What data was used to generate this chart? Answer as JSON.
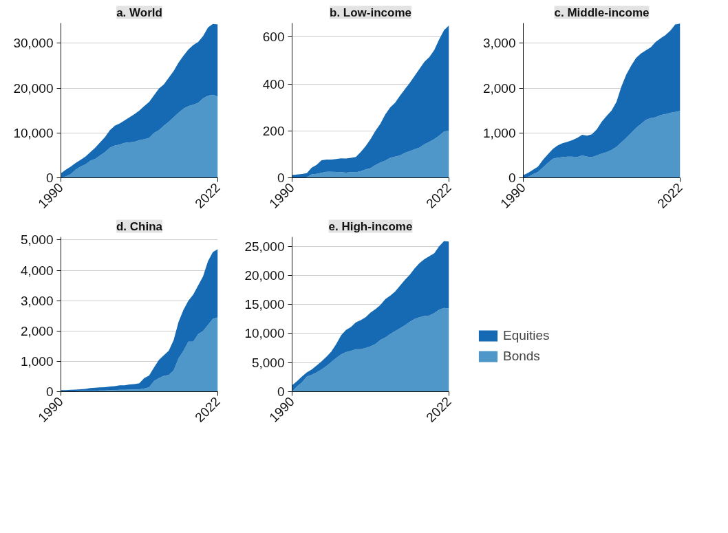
{
  "chart_data": [
    {
      "type": "area",
      "stacked": true,
      "title": "a. World",
      "x": [
        1990,
        1991,
        1992,
        1993,
        1994,
        1995,
        1996,
        1997,
        1998,
        1999,
        2000,
        2001,
        2002,
        2003,
        2004,
        2005,
        2006,
        2007,
        2008,
        2009,
        2010,
        2011,
        2012,
        2013,
        2014,
        2015,
        2016,
        2017,
        2018,
        2019,
        2020,
        2021,
        2022
      ],
      "xlim": [
        1990,
        2022
      ],
      "xticks": [
        1990,
        2022
      ],
      "ylim": [
        0,
        34500
      ],
      "yticks": [
        {
          "value": 0,
          "label": "0"
        },
        {
          "value": 10000,
          "label": "10,000"
        },
        {
          "value": 20000,
          "label": "20,000"
        },
        {
          "value": 30000,
          "label": "30,000"
        }
      ],
      "grid": "y",
      "series": [
        {
          "color": "#4f97c9",
          "values": [
            0,
            300,
            800,
            1800,
            2500,
            3000,
            3800,
            4200,
            5000,
            5700,
            6700,
            7200,
            7400,
            7800,
            7900,
            8000,
            8400,
            8600,
            8900,
            10000,
            10600,
            11600,
            12500,
            13500,
            14500,
            15400,
            16000,
            16300,
            16700,
            17700,
            18300,
            18500,
            18100
          ]
        },
        {
          "color": "#156ab3",
          "values": [
            1000,
            1500,
            1700,
            1500,
            1500,
            1700,
            1900,
            2500,
            2900,
            3400,
            3900,
            4400,
            4700,
            5000,
            5600,
            6200,
            6600,
            7400,
            8000,
            8400,
            9300,
            9200,
            9800,
            10300,
            11200,
            11800,
            12600,
            13300,
            13600,
            13900,
            15200,
            15800,
            16100
          ]
        }
      ]
    },
    {
      "type": "area",
      "stacked": true,
      "title": "b. Low-income",
      "x": [
        1990,
        1991,
        1992,
        1993,
        1994,
        1995,
        1996,
        1997,
        1998,
        1999,
        2000,
        2001,
        2002,
        2003,
        2004,
        2005,
        2006,
        2007,
        2008,
        2009,
        2010,
        2011,
        2012,
        2013,
        2014,
        2015,
        2016,
        2017,
        2018,
        2019,
        2020,
        2021,
        2022
      ],
      "xlim": [
        1990,
        2022
      ],
      "xticks": [
        1990,
        2022
      ],
      "ylim": [
        0,
        660
      ],
      "yticks": [
        0,
        200,
        400,
        600
      ],
      "grid": "y",
      "series": [
        {
          "color": "#4f97c9",
          "values": [
            0,
            0,
            0,
            2,
            15,
            17,
            21,
            26,
            26,
            25,
            24,
            22,
            24,
            24,
            28,
            36,
            41,
            54,
            65,
            73,
            85,
            90,
            95,
            106,
            114,
            122,
            129,
            143,
            153,
            165,
            180,
            197,
            202
          ]
        },
        {
          "color": "#156ab3",
          "values": [
            12,
            14,
            16,
            18,
            28,
            38,
            54,
            52,
            52,
            55,
            59,
            60,
            61,
            65,
            82,
            99,
            124,
            146,
            165,
            197,
            215,
            230,
            255,
            272,
            291,
            313,
            336,
            352,
            362,
            380,
            410,
            433,
            448
          ]
        }
      ]
    },
    {
      "type": "area",
      "stacked": true,
      "title": "c. Middle-income",
      "x": [
        1990,
        1991,
        1992,
        1993,
        1994,
        1995,
        1996,
        1997,
        1998,
        1999,
        2000,
        2001,
        2002,
        2003,
        2004,
        2005,
        2006,
        2007,
        2008,
        2009,
        2010,
        2011,
        2012,
        2013,
        2014,
        2015,
        2016,
        2017,
        2018,
        2019,
        2020,
        2021,
        2022
      ],
      "xlim": [
        1990,
        2022
      ],
      "xticks": [
        1990,
        2022
      ],
      "ylim": [
        0,
        3450
      ],
      "yticks": [
        {
          "value": 0,
          "label": "0"
        },
        {
          "value": 1000,
          "label": "1,000"
        },
        {
          "value": 2000,
          "label": "2,000"
        },
        {
          "value": 3000,
          "label": "3,000"
        }
      ],
      "grid": "y",
      "series": [
        {
          "color": "#4f97c9",
          "values": [
            0,
            20,
            80,
            130,
            230,
            330,
            420,
            450,
            460,
            470,
            470,
            460,
            500,
            470,
            460,
            500,
            540,
            570,
            620,
            690,
            790,
            890,
            1000,
            1110,
            1200,
            1290,
            1330,
            1350,
            1400,
            1420,
            1450,
            1470,
            1490
          ]
        },
        {
          "color": "#156ab3",
          "values": [
            60,
            90,
            100,
            120,
            170,
            190,
            220,
            270,
            310,
            330,
            370,
            430,
            460,
            470,
            510,
            580,
            710,
            810,
            880,
            1000,
            1240,
            1410,
            1500,
            1560,
            1570,
            1550,
            1580,
            1680,
            1710,
            1760,
            1830,
            1950,
            1950
          ]
        }
      ]
    },
    {
      "type": "area",
      "stacked": true,
      "title": "d. China",
      "x": [
        1990,
        1991,
        1992,
        1993,
        1994,
        1995,
        1996,
        1997,
        1998,
        1999,
        2000,
        2001,
        2002,
        2003,
        2004,
        2005,
        2006,
        2007,
        2008,
        2009,
        2010,
        2011,
        2012,
        2013,
        2014,
        2015,
        2016,
        2017,
        2018,
        2019,
        2020,
        2021,
        2022
      ],
      "xlim": [
        1990,
        2022
      ],
      "xticks": [
        1990,
        2022
      ],
      "ylim": [
        0,
        5100
      ],
      "yticks": [
        {
          "value": 0,
          "label": "0"
        },
        {
          "value": 1000,
          "label": "1,000"
        },
        {
          "value": 2000,
          "label": "2,000"
        },
        {
          "value": 3000,
          "label": "3,000"
        },
        {
          "value": 4000,
          "label": "4,000"
        },
        {
          "value": 5000,
          "label": "5,000"
        }
      ],
      "grid": "y",
      "series": [
        {
          "color": "#4f97c9",
          "values": [
            0,
            0,
            10,
            10,
            20,
            20,
            30,
            30,
            40,
            40,
            50,
            50,
            60,
            60,
            70,
            70,
            80,
            100,
            150,
            350,
            450,
            520,
            550,
            700,
            1100,
            1350,
            1650,
            1650,
            1900,
            2000,
            2200,
            2400,
            2450
          ]
        },
        {
          "color": "#156ab3",
          "values": [
            50,
            50,
            50,
            60,
            60,
            70,
            90,
            100,
            100,
            110,
            120,
            130,
            150,
            150,
            170,
            180,
            200,
            350,
            380,
            450,
            600,
            680,
            800,
            1000,
            1200,
            1350,
            1350,
            1550,
            1600,
            1800,
            2100,
            2200,
            2250
          ]
        }
      ]
    },
    {
      "type": "area",
      "stacked": true,
      "title": "e. High-income",
      "x": [
        1990,
        1991,
        1992,
        1993,
        1994,
        1995,
        1996,
        1997,
        1998,
        1999,
        2000,
        2001,
        2002,
        2003,
        2004,
        2005,
        2006,
        2007,
        2008,
        2009,
        2010,
        2011,
        2012,
        2013,
        2014,
        2015,
        2016,
        2017,
        2018,
        2019,
        2020,
        2021,
        2022
      ],
      "xlim": [
        1990,
        2022
      ],
      "xticks": [
        1990,
        2022
      ],
      "ylim": [
        0,
        26600
      ],
      "yticks": [
        {
          "value": 0,
          "label": "0"
        },
        {
          "value": 5000,
          "label": "5,000"
        },
        {
          "value": 10000,
          "label": "10,000"
        },
        {
          "value": 15000,
          "label": "15,000"
        },
        {
          "value": 20000,
          "label": "20,000"
        },
        {
          "value": 25000,
          "label": "25,000"
        }
      ],
      "grid": "y",
      "legend": "right",
      "series": [
        {
          "name": "Bonds",
          "color": "#4f97c9",
          "values": [
            0,
            900,
            1600,
            2600,
            2900,
            3300,
            3800,
            4400,
            5100,
            5800,
            6400,
            6800,
            7000,
            7300,
            7300,
            7500,
            7800,
            8200,
            8900,
            9300,
            9900,
            10400,
            10900,
            11400,
            12000,
            12500,
            12800,
            13000,
            13100,
            13500,
            14100,
            14400,
            14300
          ]
        },
        {
          "name": "Equities",
          "color": "#156ab3",
          "values": [
            1100,
            900,
            1000,
            700,
            900,
            1200,
            1400,
            1600,
            1800,
            2400,
            3300,
            3800,
            4100,
            4600,
            5000,
            5300,
            5800,
            6000,
            6000,
            6600,
            6600,
            6800,
            7300,
            7800,
            8100,
            8700,
            9300,
            9800,
            10200,
            10300,
            10900,
            11500,
            11500
          ]
        }
      ]
    }
  ]
}
